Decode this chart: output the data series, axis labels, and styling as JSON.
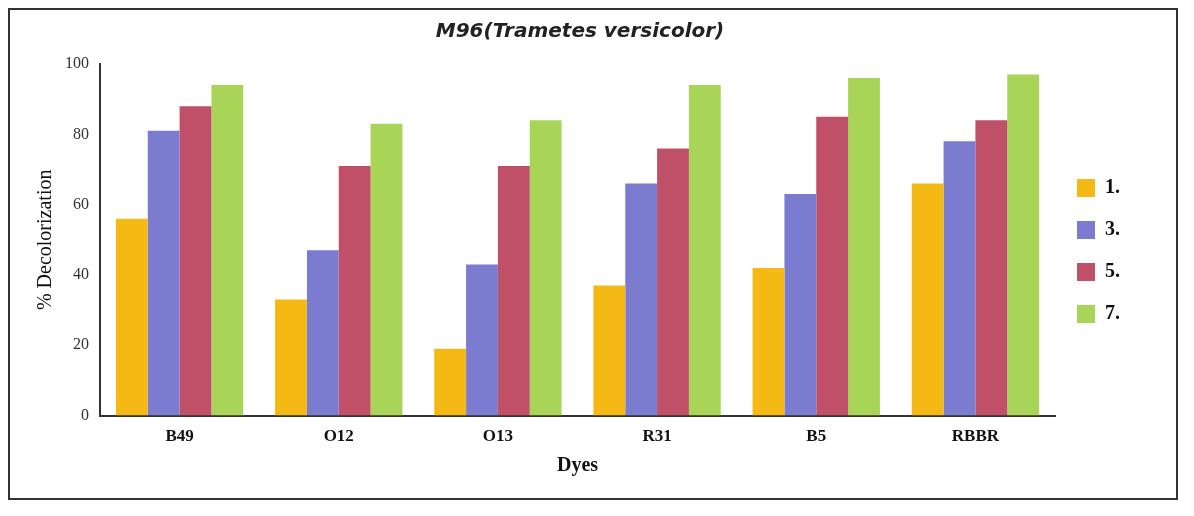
{
  "chart_data": {
    "type": "bar",
    "title": "M96(Trametes versicolor)",
    "xlabel": "Dyes",
    "ylabel": "% Decolorization",
    "categories": [
      "B49",
      "O12",
      "O13",
      "R31",
      "B5",
      "RBBR"
    ],
    "series": [
      {
        "name": "1.",
        "color": "#f5b915",
        "values": [
          56,
          33,
          19,
          37,
          42,
          66
        ]
      },
      {
        "name": "3.",
        "color": "#7b7bd0",
        "values": [
          81,
          47,
          43,
          66,
          63,
          78
        ]
      },
      {
        "name": "5.",
        "color": "#c05068",
        "values": [
          88,
          71,
          71,
          76,
          85,
          84
        ]
      },
      {
        "name": "7.",
        "color": "#a8d458",
        "values": [
          94,
          83,
          84,
          94,
          96,
          97
        ]
      }
    ],
    "ylim": [
      0,
      100
    ],
    "yticks": [
      0,
      20,
      40,
      60,
      80,
      100
    ],
    "grid": false,
    "legend": "right"
  }
}
